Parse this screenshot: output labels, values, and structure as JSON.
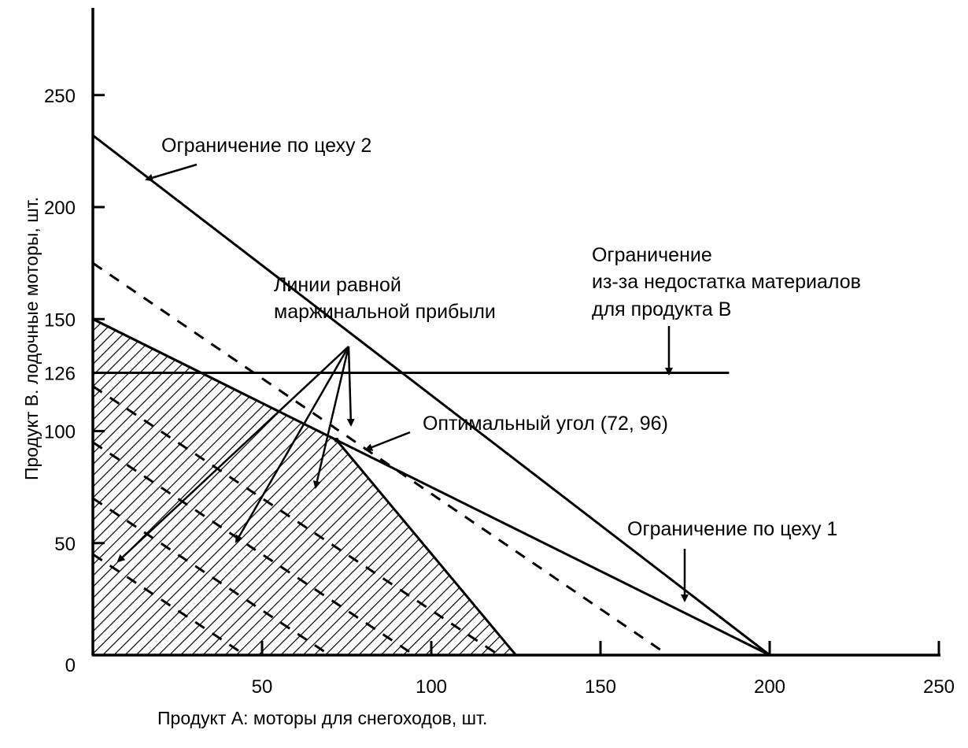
{
  "chart_data": {
    "type": "line",
    "xlabel": "Продукт A: моторы для снегоходов, шт.",
    "ylabel": "Продукт B. лодочные моторы, шт.",
    "xlim": [
      0,
      250
    ],
    "ylim": [
      0,
      290
    ],
    "x_ticks": [
      50,
      100,
      150,
      200,
      250
    ],
    "y_ticks": [
      250,
      200,
      150,
      126,
      100,
      50
    ],
    "origin_label": "0",
    "grid": false,
    "legend": "none",
    "colors": {
      "ink": "#000000",
      "background": "#ffffff"
    },
    "constraints": [
      {
        "name": "shop2",
        "points": [
          [
            0,
            232
          ],
          [
            200,
            0
          ]
        ]
      },
      {
        "name": "shop1",
        "points": [
          [
            0,
            150
          ],
          [
            200,
            0
          ]
        ]
      },
      {
        "name": "materialB",
        "points": [
          [
            0,
            126
          ],
          [
            188,
            126
          ]
        ]
      }
    ],
    "iso_profit_lines": [
      {
        "points": [
          [
            0,
            175
          ],
          [
            170,
            0
          ]
        ],
        "style": "dashed"
      },
      {
        "points": [
          [
            0,
            120
          ],
          [
            120,
            0
          ]
        ],
        "style": "dashed"
      },
      {
        "points": [
          [
            0,
            95
          ],
          [
            95,
            0
          ]
        ],
        "style": "dashed"
      },
      {
        "points": [
          [
            0,
            70
          ],
          [
            70,
            0
          ]
        ],
        "style": "dashed"
      },
      {
        "points": [
          [
            0,
            45
          ],
          [
            45,
            0
          ]
        ],
        "style": "dashed"
      }
    ],
    "feasible_region": [
      [
        0,
        0
      ],
      [
        0,
        150
      ],
      [
        72,
        96
      ],
      [
        125,
        0
      ]
    ],
    "optimal_point": [
      72,
      96
    ],
    "annotations": {
      "shop2": "Ограничение по цеху 2",
      "isoprofit_line1": "Линии равной",
      "isoprofit_line2": "маржинальной прибыли",
      "material_line1": "Ограничение",
      "material_line2": "из-за недостатка материалов",
      "material_line3": "для продукта B",
      "optimal": "Оптимальный угол (72, 96)",
      "shop1": "Ограничение по цеху 1"
    }
  }
}
